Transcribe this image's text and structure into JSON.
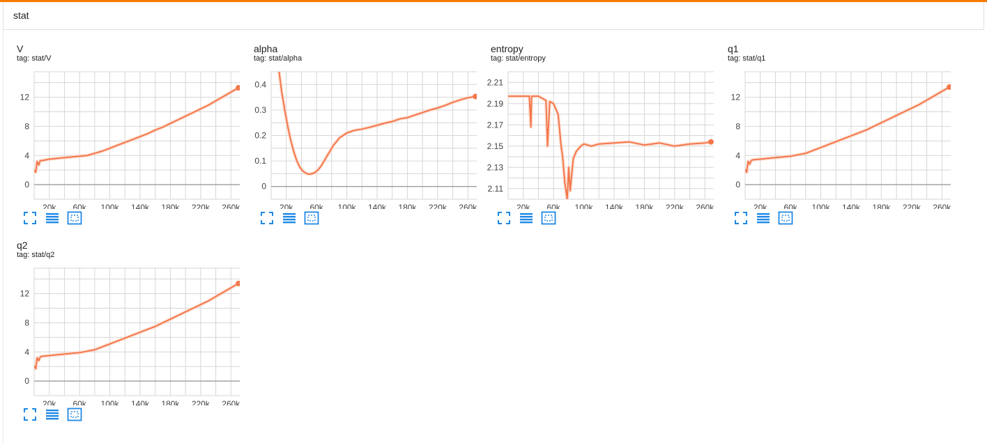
{
  "group": {
    "title": "stat"
  },
  "colors": {
    "accent": "#f57c00",
    "series": "#f4774a",
    "series_light": "#fbd3c3",
    "grid": "#d6d6d6",
    "axis": "#9e9e9e",
    "tool": "#1e88e5"
  },
  "toolbar": {
    "icons": [
      "fullscreen-icon",
      "data-table-icon",
      "fit-domain-icon"
    ]
  },
  "cards": [
    {
      "title": "V",
      "tag_prefix": "tag:",
      "tag": "stat/V"
    },
    {
      "title": "alpha",
      "tag_prefix": "tag:",
      "tag": "stat/alpha"
    },
    {
      "title": "entropy",
      "tag_prefix": "tag:",
      "tag": "stat/entropy"
    },
    {
      "title": "q1",
      "tag_prefix": "tag:",
      "tag": "stat/q1"
    },
    {
      "title": "q2",
      "tag_prefix": "tag:",
      "tag": "stat/q2"
    }
  ],
  "chart_data": [
    {
      "type": "line",
      "title": "V",
      "xlim": [
        0,
        280000
      ],
      "ylim": [
        -2,
        15.5
      ],
      "xticks": [
        20000,
        60000,
        100000,
        140000,
        180000,
        220000,
        260000
      ],
      "xtick_labels": [
        "20k",
        "60k",
        "100k",
        "140k",
        "180k",
        "220k",
        "260k"
      ],
      "yticks": [
        0,
        4,
        8,
        12
      ],
      "ytick_labels": [
        "0",
        "4",
        "8",
        "12"
      ],
      "grid": true,
      "series": [
        {
          "x": [
            0,
            2000,
            4000,
            6000,
            8000,
            10000,
            20000,
            30000,
            40000,
            50000,
            60000,
            70000,
            80000,
            90000,
            100000,
            110000,
            120000,
            130000,
            140000,
            150000,
            160000,
            170000,
            180000,
            190000,
            200000,
            210000,
            220000,
            230000,
            240000,
            250000,
            260000,
            270000
          ],
          "values": [
            2.0,
            1.7,
            3.2,
            2.7,
            3.3,
            3.3,
            3.5,
            3.6,
            3.7,
            3.8,
            3.9,
            4.0,
            4.3,
            4.6,
            5.0,
            5.4,
            5.8,
            6.2,
            6.6,
            7.0,
            7.5,
            7.9,
            8.4,
            8.9,
            9.4,
            9.9,
            10.4,
            10.9,
            11.5,
            12.1,
            12.7,
            13.3
          ]
        }
      ]
    },
    {
      "type": "line",
      "title": "alpha",
      "xlim": [
        0,
        280000
      ],
      "ylim": [
        -0.05,
        0.45
      ],
      "xticks": [
        20000,
        60000,
        100000,
        140000,
        180000,
        220000,
        260000
      ],
      "xtick_labels": [
        "20k",
        "60k",
        "100k",
        "140k",
        "180k",
        "220k",
        "260k"
      ],
      "yticks": [
        0,
        0.1,
        0.2,
        0.3,
        0.4
      ],
      "ytick_labels": [
        "0",
        "0.1",
        "0.2",
        "0.3",
        "0.4"
      ],
      "grid": true,
      "series": [
        {
          "x": [
            10000,
            14000,
            18000,
            22000,
            26000,
            30000,
            34000,
            38000,
            42000,
            46000,
            50000,
            54000,
            58000,
            62000,
            66000,
            70000,
            74000,
            78000,
            82000,
            86000,
            90000,
            95000,
            100000,
            105000,
            110000,
            120000,
            130000,
            140000,
            150000,
            160000,
            170000,
            180000,
            190000,
            200000,
            210000,
            220000,
            230000,
            240000,
            250000,
            260000,
            270000
          ],
          "values": [
            0.46,
            0.37,
            0.3,
            0.235,
            0.18,
            0.135,
            0.1,
            0.075,
            0.06,
            0.052,
            0.048,
            0.05,
            0.055,
            0.065,
            0.08,
            0.1,
            0.12,
            0.14,
            0.16,
            0.175,
            0.19,
            0.2,
            0.21,
            0.215,
            0.22,
            0.225,
            0.232,
            0.24,
            0.248,
            0.255,
            0.265,
            0.27,
            0.28,
            0.29,
            0.3,
            0.308,
            0.318,
            0.33,
            0.34,
            0.348,
            0.353
          ]
        }
      ]
    },
    {
      "type": "line",
      "title": "entropy",
      "xlim": [
        0,
        280000
      ],
      "ylim": [
        2.1,
        2.22
      ],
      "xticks": [
        20000,
        60000,
        100000,
        140000,
        180000,
        220000,
        260000
      ],
      "xtick_labels": [
        "20k",
        "60k",
        "100k",
        "140k",
        "180k",
        "220k",
        "260k"
      ],
      "yticks": [
        2.11,
        2.13,
        2.15,
        2.17,
        2.19,
        2.21
      ],
      "ytick_labels": [
        "2.11",
        "2.13",
        "2.15",
        "2.17",
        "2.19",
        "2.21"
      ],
      "grid": true,
      "series": [
        {
          "x": [
            0,
            10000,
            20000,
            28000,
            30000,
            31000,
            32000,
            40000,
            50000,
            52000,
            55000,
            60000,
            66000,
            70000,
            72000,
            75000,
            78000,
            80000,
            82000,
            86000,
            90000,
            96000,
            100000,
            110000,
            120000,
            140000,
            160000,
            180000,
            200000,
            220000,
            240000,
            260000,
            268000
          ],
          "values": [
            2.197,
            2.197,
            2.197,
            2.197,
            2.168,
            2.197,
            2.197,
            2.197,
            2.193,
            2.15,
            2.192,
            2.19,
            2.18,
            2.15,
            2.14,
            2.115,
            2.1,
            2.13,
            2.108,
            2.138,
            2.145,
            2.15,
            2.152,
            2.15,
            2.152,
            2.153,
            2.154,
            2.151,
            2.153,
            2.15,
            2.152,
            2.153,
            2.154
          ]
        }
      ]
    },
    {
      "type": "line",
      "title": "q1",
      "xlim": [
        0,
        280000
      ],
      "ylim": [
        -2,
        15.5
      ],
      "xticks": [
        20000,
        60000,
        100000,
        140000,
        180000,
        220000,
        260000
      ],
      "xtick_labels": [
        "20k",
        "60k",
        "100k",
        "140k",
        "180k",
        "220k",
        "260k"
      ],
      "yticks": [
        0,
        4,
        8,
        12
      ],
      "ytick_labels": [
        "0",
        "4",
        "8",
        "12"
      ],
      "grid": true,
      "series": [
        {
          "x": [
            0,
            2000,
            4000,
            6000,
            8000,
            10000,
            20000,
            30000,
            40000,
            50000,
            60000,
            70000,
            80000,
            90000,
            100000,
            110000,
            120000,
            130000,
            140000,
            150000,
            160000,
            170000,
            180000,
            190000,
            200000,
            210000,
            220000,
            230000,
            240000,
            250000,
            260000,
            270000
          ],
          "values": [
            2.1,
            1.7,
            3.2,
            2.8,
            3.3,
            3.4,
            3.5,
            3.6,
            3.7,
            3.8,
            3.9,
            4.1,
            4.3,
            4.7,
            5.1,
            5.5,
            5.9,
            6.3,
            6.7,
            7.1,
            7.5,
            8.0,
            8.5,
            9.0,
            9.5,
            10.0,
            10.5,
            11.0,
            11.6,
            12.2,
            12.8,
            13.4
          ]
        }
      ]
    },
    {
      "type": "line",
      "title": "q2",
      "xlim": [
        0,
        280000
      ],
      "ylim": [
        -2,
        15.5
      ],
      "xticks": [
        20000,
        60000,
        100000,
        140000,
        180000,
        220000,
        260000
      ],
      "xtick_labels": [
        "20k",
        "60k",
        "100k",
        "140k",
        "180k",
        "220k",
        "260k"
      ],
      "yticks": [
        0,
        4,
        8,
        12
      ],
      "ytick_labels": [
        "0",
        "4",
        "8",
        "12"
      ],
      "grid": true,
      "series": [
        {
          "x": [
            0,
            2000,
            4000,
            6000,
            8000,
            10000,
            20000,
            30000,
            40000,
            50000,
            60000,
            70000,
            80000,
            90000,
            100000,
            110000,
            120000,
            130000,
            140000,
            150000,
            160000,
            170000,
            180000,
            190000,
            200000,
            210000,
            220000,
            230000,
            240000,
            250000,
            260000,
            270000
          ],
          "values": [
            2.1,
            1.7,
            3.2,
            2.8,
            3.3,
            3.4,
            3.5,
            3.6,
            3.7,
            3.8,
            3.9,
            4.1,
            4.3,
            4.7,
            5.1,
            5.5,
            5.9,
            6.3,
            6.7,
            7.1,
            7.5,
            8.0,
            8.5,
            9.0,
            9.5,
            10.0,
            10.5,
            11.0,
            11.6,
            12.2,
            12.8,
            13.4
          ]
        }
      ]
    }
  ]
}
